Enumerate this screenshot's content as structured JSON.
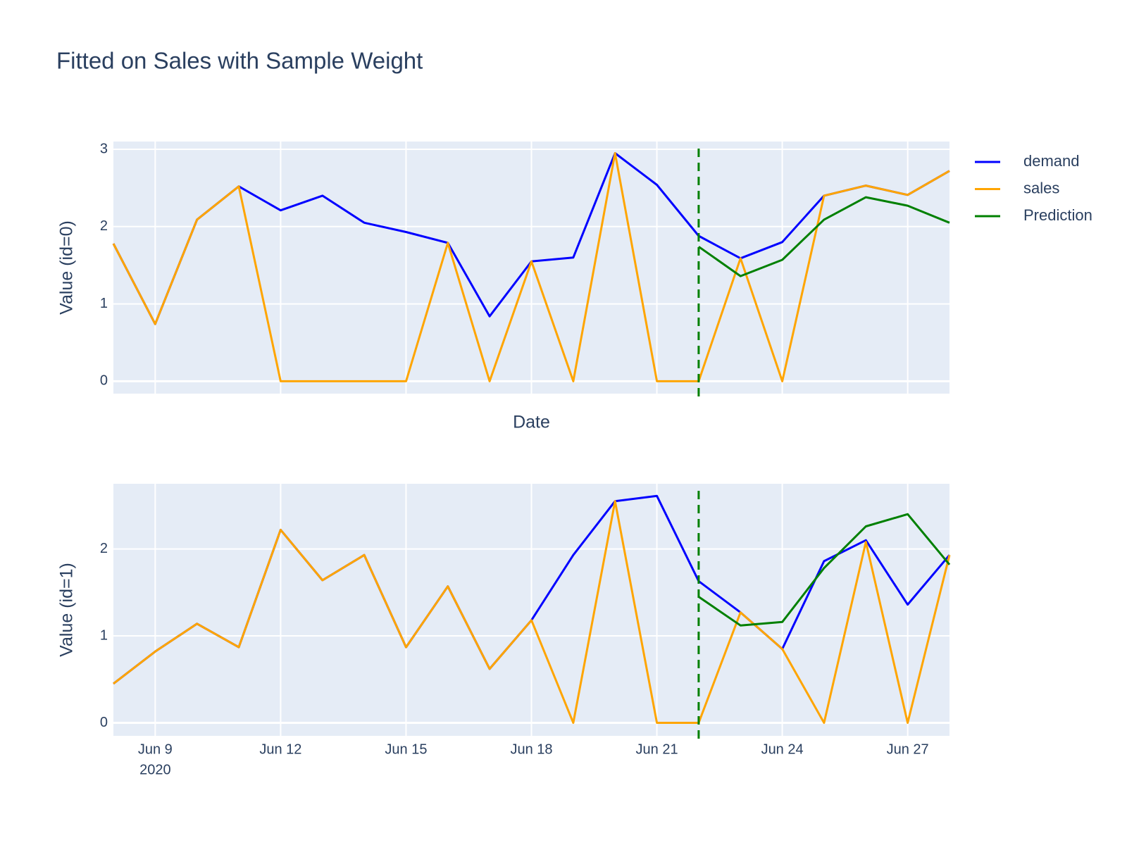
{
  "title": "Fitted on Sales with Sample Weight",
  "chart_data": [
    {
      "type": "line",
      "x_label": "Date",
      "y_label": "Value (id=0)",
      "x": [
        "2020-06-08",
        "2020-06-09",
        "2020-06-10",
        "2020-06-11",
        "2020-06-12",
        "2020-06-13",
        "2020-06-14",
        "2020-06-15",
        "2020-06-16",
        "2020-06-17",
        "2020-06-18",
        "2020-06-19",
        "2020-06-20",
        "2020-06-21",
        "2020-06-22",
        "2020-06-23",
        "2020-06-24",
        "2020-06-25",
        "2020-06-26",
        "2020-06-27",
        "2020-06-28"
      ],
      "series": [
        {
          "name": "demand",
          "color": "#0000ff",
          "values": [
            1.78,
            0.74,
            2.09,
            2.52,
            2.21,
            2.4,
            2.05,
            1.93,
            1.79,
            0.84,
            1.55,
            1.6,
            2.95,
            2.54,
            1.88,
            1.59,
            1.8,
            2.4,
            2.53,
            2.41,
            2.72
          ]
        },
        {
          "name": "sales",
          "color": "#ffa500",
          "values": [
            1.78,
            0.74,
            2.09,
            2.52,
            0,
            0,
            0,
            0,
            1.79,
            0,
            1.55,
            0,
            2.95,
            0,
            0,
            1.59,
            0,
            2.4,
            2.53,
            2.41,
            2.72
          ]
        },
        {
          "name": "Prediction",
          "color": "#008000",
          "values": [
            null,
            null,
            null,
            null,
            null,
            null,
            null,
            null,
            null,
            null,
            null,
            null,
            null,
            null,
            1.74,
            1.36,
            1.57,
            2.09,
            2.38,
            2.27,
            2.05
          ]
        }
      ],
      "cutoff_x": "2020-06-22",
      "xlim": [
        "2020-06-08",
        "2020-06-28"
      ],
      "xticks": [
        "2020-06-09",
        "2020-06-12",
        "2020-06-15",
        "2020-06-18",
        "2020-06-21",
        "2020-06-24",
        "2020-06-27"
      ],
      "ylim": [
        -0.16,
        3.1
      ],
      "yticks": [
        0,
        1,
        2,
        3
      ],
      "grid": true
    },
    {
      "type": "line",
      "y_label": "Value (id=1)",
      "x": [
        "2020-06-08",
        "2020-06-09",
        "2020-06-10",
        "2020-06-11",
        "2020-06-12",
        "2020-06-13",
        "2020-06-14",
        "2020-06-15",
        "2020-06-16",
        "2020-06-17",
        "2020-06-18",
        "2020-06-19",
        "2020-06-20",
        "2020-06-21",
        "2020-06-22",
        "2020-06-23",
        "2020-06-24",
        "2020-06-25",
        "2020-06-26",
        "2020-06-27",
        "2020-06-28"
      ],
      "series": [
        {
          "name": "demand",
          "color": "#0000ff",
          "values": [
            0.45,
            0.82,
            1.14,
            0.87,
            2.22,
            1.64,
            1.93,
            0.87,
            1.57,
            0.62,
            1.18,
            1.93,
            2.55,
            2.61,
            1.63,
            1.27,
            0.85,
            1.86,
            2.1,
            1.36,
            1.93
          ]
        },
        {
          "name": "sales",
          "color": "#ffa500",
          "values": [
            0.45,
            0.82,
            1.14,
            0.87,
            2.22,
            1.64,
            1.93,
            0.87,
            1.57,
            0.62,
            1.18,
            0,
            2.55,
            0,
            0,
            1.27,
            0.85,
            0,
            2.08,
            0,
            1.93
          ]
        },
        {
          "name": "Prediction",
          "color": "#008000",
          "values": [
            null,
            null,
            null,
            null,
            null,
            null,
            null,
            null,
            null,
            null,
            null,
            null,
            null,
            null,
            1.45,
            1.12,
            1.16,
            1.78,
            2.26,
            2.4,
            1.82
          ]
        }
      ],
      "cutoff_x": "2020-06-22",
      "xlim": [
        "2020-06-08",
        "2020-06-28"
      ],
      "xticks": [
        {
          "value": "2020-06-09",
          "label": "Jun 9",
          "label2": "2020"
        },
        {
          "value": "2020-06-12",
          "label": "Jun 12"
        },
        {
          "value": "2020-06-15",
          "label": "Jun 15"
        },
        {
          "value": "2020-06-18",
          "label": "Jun 18"
        },
        {
          "value": "2020-06-21",
          "label": "Jun 21"
        },
        {
          "value": "2020-06-24",
          "label": "Jun 24"
        },
        {
          "value": "2020-06-27",
          "label": "Jun 27"
        }
      ],
      "ylim": [
        -0.15,
        2.75
      ],
      "yticks": [
        0,
        1,
        2
      ],
      "grid": true
    }
  ]
}
